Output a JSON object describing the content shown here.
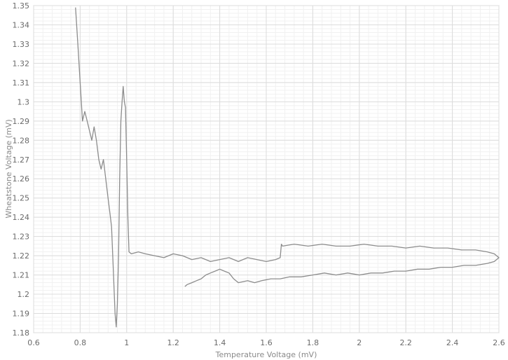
{
  "chart_data": {
    "type": "line",
    "title": "",
    "xlabel": "Temperature Voltage (mV)",
    "ylabel": "Wheatstone Voltage (mV)",
    "xlim": [
      0.6,
      2.6
    ],
    "ylim": [
      1.18,
      1.35
    ],
    "xticks": [
      0.6,
      0.8,
      1,
      1.2,
      1.4,
      1.6,
      1.8,
      2,
      2.2,
      2.4,
      2.6
    ],
    "xtick_labels": [
      "0.6",
      "0.8",
      "1",
      "1.2",
      "1.4",
      "1.6",
      "1.8",
      "2",
      "2.2",
      "2.4",
      "2.6"
    ],
    "yticks": [
      1.18,
      1.19,
      1.2,
      1.21,
      1.22,
      1.23,
      1.24,
      1.25,
      1.26,
      1.27,
      1.28,
      1.29,
      1.3,
      1.31,
      1.32,
      1.33,
      1.34,
      1.35
    ],
    "ytick_labels": [
      "1.18",
      "1.19",
      "1.2",
      "1.21",
      "1.22",
      "1.23",
      "1.24",
      "1.25",
      "1.26",
      "1.27",
      "1.28",
      "1.29",
      "1.3",
      "1.31",
      "1.32",
      "1.33",
      "1.34",
      "1.35"
    ],
    "grid": true,
    "minor_grid": true,
    "series_color": "#8c8c8c",
    "series": [
      {
        "x": [
          0.78,
          0.79,
          0.8,
          0.81,
          0.82,
          0.83,
          0.84,
          0.85,
          0.86,
          0.87,
          0.88,
          0.89,
          0.9,
          0.91,
          0.92,
          0.93,
          0.935,
          0.94,
          0.95,
          0.955,
          0.96,
          0.965,
          0.97,
          0.975,
          0.98,
          0.985,
          0.99,
          0.995,
          1.0,
          1.005,
          1.01,
          1.02,
          1.05,
          1.08,
          1.12,
          1.16,
          1.2,
          1.24,
          1.28,
          1.32,
          1.36,
          1.4,
          1.44,
          1.48,
          1.52,
          1.56,
          1.6,
          1.64,
          1.66,
          1.665,
          1.67,
          1.72,
          1.78,
          1.84,
          1.9,
          1.96,
          2.02,
          2.08,
          2.14,
          2.2,
          2.26,
          2.32,
          2.38,
          2.44,
          2.5,
          2.55,
          2.58,
          2.59,
          2.6,
          2.58,
          2.55,
          2.5,
          2.45,
          2.4,
          2.35,
          2.3,
          2.25,
          2.2,
          2.15,
          2.1,
          2.05,
          2.0,
          1.95,
          1.9,
          1.85,
          1.8,
          1.75,
          1.7,
          1.66,
          1.62,
          1.58,
          1.55,
          1.52,
          1.48,
          1.46,
          1.44,
          1.42,
          1.4,
          1.38,
          1.36,
          1.34,
          1.32,
          1.3,
          1.28,
          1.26,
          1.25
        ],
        "y": [
          1.349,
          1.33,
          1.31,
          1.29,
          1.295,
          1.29,
          1.285,
          1.28,
          1.287,
          1.28,
          1.27,
          1.265,
          1.27,
          1.26,
          1.25,
          1.24,
          1.235,
          1.22,
          1.19,
          1.183,
          1.195,
          1.22,
          1.26,
          1.29,
          1.3,
          1.308,
          1.3,
          1.297,
          1.27,
          1.24,
          1.222,
          1.221,
          1.222,
          1.221,
          1.22,
          1.219,
          1.221,
          1.22,
          1.218,
          1.219,
          1.217,
          1.218,
          1.219,
          1.217,
          1.219,
          1.218,
          1.217,
          1.218,
          1.219,
          1.226,
          1.225,
          1.226,
          1.225,
          1.226,
          1.225,
          1.225,
          1.226,
          1.225,
          1.225,
          1.224,
          1.225,
          1.224,
          1.224,
          1.223,
          1.223,
          1.222,
          1.221,
          1.22,
          1.219,
          1.217,
          1.216,
          1.215,
          1.215,
          1.214,
          1.214,
          1.213,
          1.213,
          1.212,
          1.212,
          1.211,
          1.211,
          1.21,
          1.211,
          1.21,
          1.211,
          1.21,
          1.209,
          1.209,
          1.208,
          1.208,
          1.207,
          1.206,
          1.207,
          1.206,
          1.208,
          1.211,
          1.212,
          1.213,
          1.212,
          1.211,
          1.21,
          1.208,
          1.207,
          1.206,
          1.205,
          1.204
        ]
      }
    ]
  }
}
